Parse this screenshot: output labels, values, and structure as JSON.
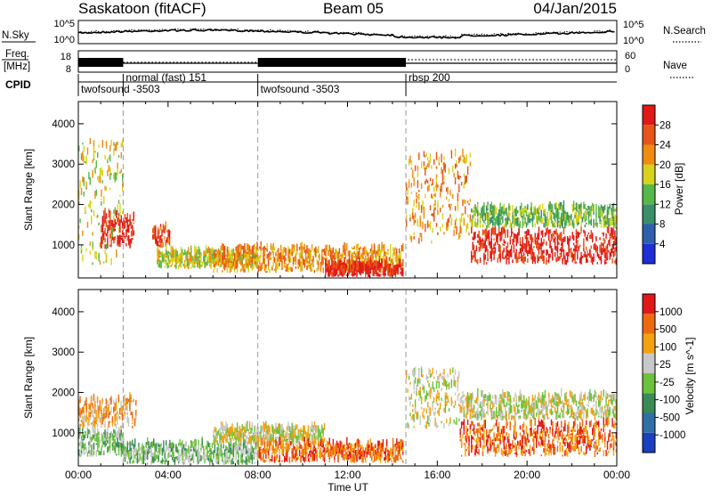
{
  "header": {
    "station": "Saskatoon (fitACF)",
    "beam": "Beam 05",
    "date": "04/Jan/2015"
  },
  "sky_panel": {
    "left_label": "N.Sky",
    "right_label": "N.Search",
    "tick_top": "10^5",
    "tick_bottom": "10^0"
  },
  "freq_panel": {
    "left_label_1": "Freq.",
    "left_label_2": "[MHz]",
    "left_tick_top": "18",
    "left_tick_bottom": "8",
    "right_label": "Nave",
    "right_tick_top": "60",
    "right_tick_bottom": "0"
  },
  "cpid": {
    "label": "CPID",
    "modes": [
      {
        "name": "twofsound -3503",
        "start_hour": 0,
        "row": "lower"
      },
      {
        "name": "normal (fast) 151",
        "start_hour": 2,
        "row": "upper"
      },
      {
        "name": "twofsound -3503",
        "start_hour": 8,
        "row": "lower"
      },
      {
        "name": "rbsp 200",
        "start_hour": 14.6,
        "row": "upper"
      }
    ]
  },
  "axes": {
    "y_label": "Slant Range [km]",
    "x_label": "Time UT",
    "x_ticks": [
      "00:00",
      "04:00",
      "08:00",
      "12:00",
      "16:00",
      "20:00",
      "00:00"
    ],
    "y_ticks": [
      "1000",
      "2000",
      "3000",
      "4000"
    ],
    "x_range_hours": [
      0,
      24
    ],
    "y_range_km": [
      180,
      4550
    ]
  },
  "colors": {
    "power_scale": [
      "#1e2dd6",
      "#2e5fae",
      "#3a8f6a",
      "#57b84a",
      "#d8d21a",
      "#f08c0e",
      "#e8541a",
      "#e01a16"
    ],
    "velocity_scale": [
      "#1a3fc0",
      "#2f6fa6",
      "#3a8a55",
      "#6cc23a",
      "#c8c8c8",
      "#f4a20e",
      "#ee6a10",
      "#e01818"
    ]
  },
  "power_colorbar": {
    "title": "Power [dB]",
    "ticks": [
      "4",
      "8",
      "12",
      "16",
      "20",
      "24",
      "28"
    ]
  },
  "velocity_colorbar": {
    "title": "Velocity [m s^-1]",
    "ticks": [
      "-1000",
      "-500",
      "-100",
      "-25",
      "25",
      "100",
      "500",
      "1000"
    ]
  },
  "chart_data": [
    {
      "type": "heatmap",
      "title": "Power [dB]",
      "xlabel": "Time UT",
      "ylabel": "Slant Range [km]",
      "xlim_hours": [
        0,
        24
      ],
      "ylim_km": [
        180,
        4550
      ],
      "regions": [
        {
          "t0": 0.0,
          "t1": 2.0,
          "r0": 500,
          "r1": 3500,
          "level": 4
        },
        {
          "t0": 1.0,
          "t1": 2.5,
          "r0": 900,
          "r1": 1700,
          "level": 7
        },
        {
          "t0": 3.3,
          "t1": 4.1,
          "r0": 900,
          "r1": 1400,
          "level": 6
        },
        {
          "t0": 3.5,
          "t1": 8.0,
          "r0": 400,
          "r1": 800,
          "level": 4
        },
        {
          "t0": 6.0,
          "t1": 14.5,
          "r0": 300,
          "r1": 900,
          "level": 5
        },
        {
          "t0": 11.0,
          "t1": 14.5,
          "r0": 200,
          "r1": 500,
          "level": 7
        },
        {
          "t0": 14.6,
          "t1": 17.5,
          "r0": 1000,
          "r1": 3200,
          "level": 5
        },
        {
          "t0": 17.5,
          "t1": 24.0,
          "r0": 500,
          "r1": 1300,
          "level": 7
        },
        {
          "t0": 17.5,
          "t1": 24.0,
          "r0": 1400,
          "r1": 1900,
          "level": 3
        }
      ]
    },
    {
      "type": "heatmap",
      "title": "Velocity [m s^-1]",
      "xlabel": "Time UT",
      "ylabel": "Slant Range [km]",
      "xlim_hours": [
        0,
        24
      ],
      "ylim_km": [
        180,
        4550
      ],
      "regions": [
        {
          "t0": 0.0,
          "t1": 2.6,
          "r0": 1100,
          "r1": 1800,
          "level": 5
        },
        {
          "t0": 0.0,
          "t1": 2.0,
          "r0": 400,
          "r1": 1000,
          "level": 3
        },
        {
          "t0": 2.0,
          "t1": 8.0,
          "r0": 200,
          "r1": 700,
          "level": 3
        },
        {
          "t0": 6.0,
          "t1": 11.0,
          "r0": 700,
          "r1": 1100,
          "level": 4
        },
        {
          "t0": 8.0,
          "t1": 14.5,
          "r0": 250,
          "r1": 700,
          "level": 6
        },
        {
          "t0": 14.6,
          "t1": 17.0,
          "r0": 1100,
          "r1": 2500,
          "level": 4
        },
        {
          "t0": 17.0,
          "t1": 24.0,
          "r0": 1300,
          "r1": 1900,
          "level": 4
        },
        {
          "t0": 17.0,
          "t1": 24.0,
          "r0": 400,
          "r1": 1200,
          "level": 6
        }
      ]
    }
  ]
}
